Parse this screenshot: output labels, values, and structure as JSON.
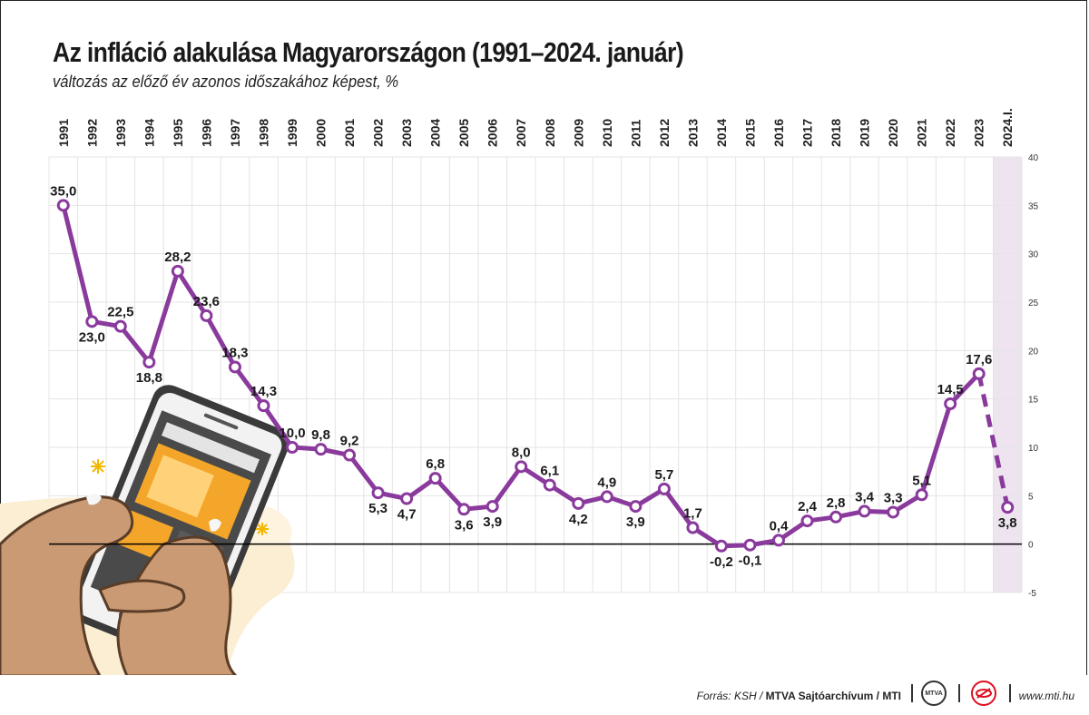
{
  "title": "Az infláció alakulása Magyarországon (1991–2024. január)",
  "subtitle": "változás az előző év azonos időszakához képest, %",
  "chart_data": {
    "type": "line",
    "categories": [
      "1991",
      "1992",
      "1993",
      "1994",
      "1995",
      "1996",
      "1997",
      "1998",
      "1999",
      "2000",
      "2001",
      "2002",
      "2003",
      "2004",
      "2005",
      "2006",
      "2007",
      "2008",
      "2009",
      "2010",
      "2011",
      "2012",
      "2013",
      "2014",
      "2015",
      "2016",
      "2017",
      "2018",
      "2019",
      "2020",
      "2021",
      "2022",
      "2023",
      "2024.I."
    ],
    "values": [
      35.0,
      23.0,
      22.5,
      18.8,
      28.2,
      23.6,
      18.3,
      14.3,
      10.0,
      9.8,
      9.2,
      5.3,
      4.7,
      6.8,
      3.6,
      3.9,
      8.0,
      6.1,
      4.2,
      4.9,
      3.9,
      5.7,
      1.7,
      -0.2,
      -0.1,
      0.4,
      2.4,
      2.8,
      3.4,
      3.3,
      5.1,
      14.5,
      17.6,
      3.8
    ],
    "data_labels": [
      "35,0",
      "23,0",
      "22,5",
      "18,8",
      "28,2",
      "23,6",
      "18,3",
      "14,3",
      "10,0",
      "9,8",
      "9,2",
      "5,3",
      "4,7",
      "6,8",
      "3,6",
      "3,9",
      "8,0",
      "6,1",
      "4,2",
      "4,9",
      "3,9",
      "5,7",
      "1,7",
      "-0,2",
      "-0,1",
      "0,4",
      "2,4",
      "2,8",
      "3,4",
      "3,3",
      "5,1",
      "14,5",
      "17,6",
      "3,8"
    ],
    "label_below": [
      false,
      true,
      false,
      true,
      false,
      false,
      false,
      false,
      false,
      false,
      false,
      true,
      true,
      false,
      true,
      true,
      false,
      false,
      true,
      false,
      true,
      false,
      false,
      true,
      true,
      false,
      false,
      false,
      false,
      false,
      false,
      false,
      false,
      true
    ],
    "y_ticks": [
      40,
      35,
      30,
      25,
      20,
      15,
      10,
      5,
      0,
      -5
    ],
    "ylim": [
      -5,
      40
    ],
    "xlabel": "",
    "ylabel": "",
    "grid": true,
    "highlight_last_category": true,
    "last_segment_dashed": true,
    "colors": {
      "line": "#8a3a9c",
      "highlight": "#ede4f0",
      "grid": "#e4e4e4",
      "zero": "#000000"
    }
  },
  "footer": {
    "source_prefix": "Forrás: KSH /",
    "source_bold": "MTVA Sajtóarchívum / MTI",
    "logo_text": "MTVA",
    "url": "www.mti.hu"
  }
}
